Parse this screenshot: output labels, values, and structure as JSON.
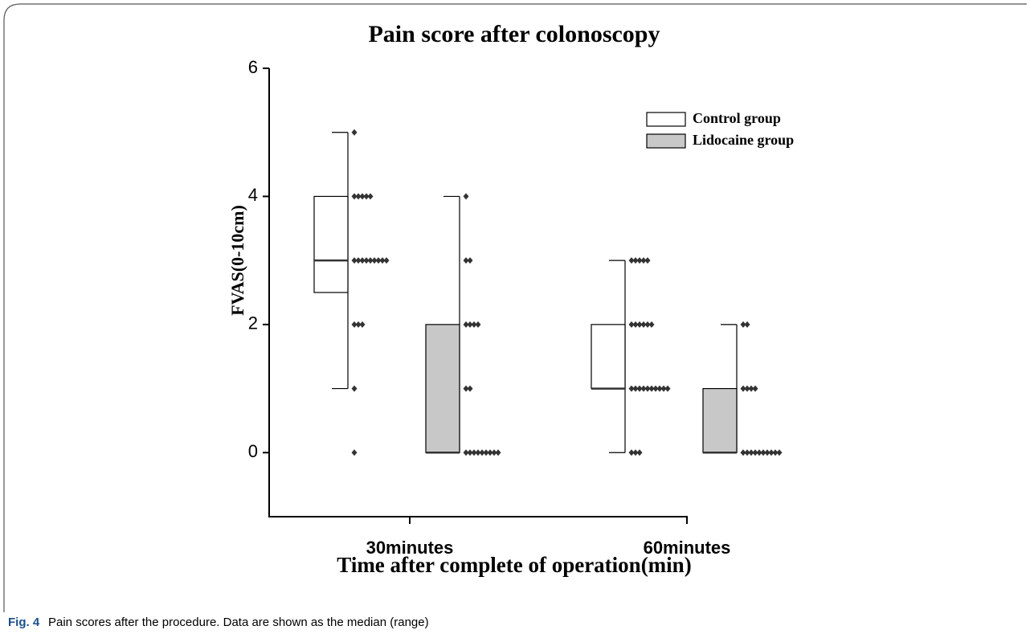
{
  "chart_data": {
    "type": "box",
    "title": "Pain score after colonoscopy",
    "y_label": "FVAS(0-10cm)",
    "x_label": "Time after complete of operation(min)",
    "categories": [
      "30minutes",
      "60minutes"
    ],
    "ylim": [
      -1,
      6
    ],
    "yticks": [
      0,
      2,
      4,
      6
    ],
    "series": [
      {
        "name": "Control group",
        "color": "#ffffff",
        "boxes": [
          {
            "min": 1,
            "q1": 2.5,
            "median": 3,
            "q3": 4,
            "max": 5
          },
          {
            "min": 0,
            "q1": 1,
            "median": 1,
            "q3": 2,
            "max": 3
          }
        ],
        "points": [
          [
            5,
            4,
            4,
            4,
            4,
            4,
            3,
            3,
            3,
            3,
            3,
            3,
            3,
            3,
            3,
            2,
            2,
            2,
            1,
            0
          ],
          [
            3,
            3,
            3,
            3,
            3,
            2,
            2,
            2,
            2,
            2,
            2,
            1,
            1,
            1,
            1,
            1,
            1,
            1,
            1,
            1,
            1,
            0,
            0,
            0
          ]
        ]
      },
      {
        "name": "Lidocaine group",
        "color": "#c8c8c8",
        "boxes": [
          {
            "min": 0,
            "q1": 0,
            "median": 0,
            "q3": 2,
            "max": 4
          },
          {
            "min": 0,
            "q1": 0,
            "median": 0,
            "q3": 1,
            "max": 2
          }
        ],
        "points": [
          [
            4,
            3,
            3,
            2,
            2,
            2,
            2,
            1,
            1,
            0,
            0,
            0,
            0,
            0,
            0,
            0,
            0,
            0
          ],
          [
            2,
            2,
            1,
            1,
            1,
            1,
            0,
            0,
            0,
            0,
            0,
            0,
            0,
            0,
            0,
            0
          ]
        ]
      }
    ]
  },
  "caption": {
    "label": "Fig. 4",
    "text": "Pain scores after the procedure. Data are shown as the median (range)"
  }
}
